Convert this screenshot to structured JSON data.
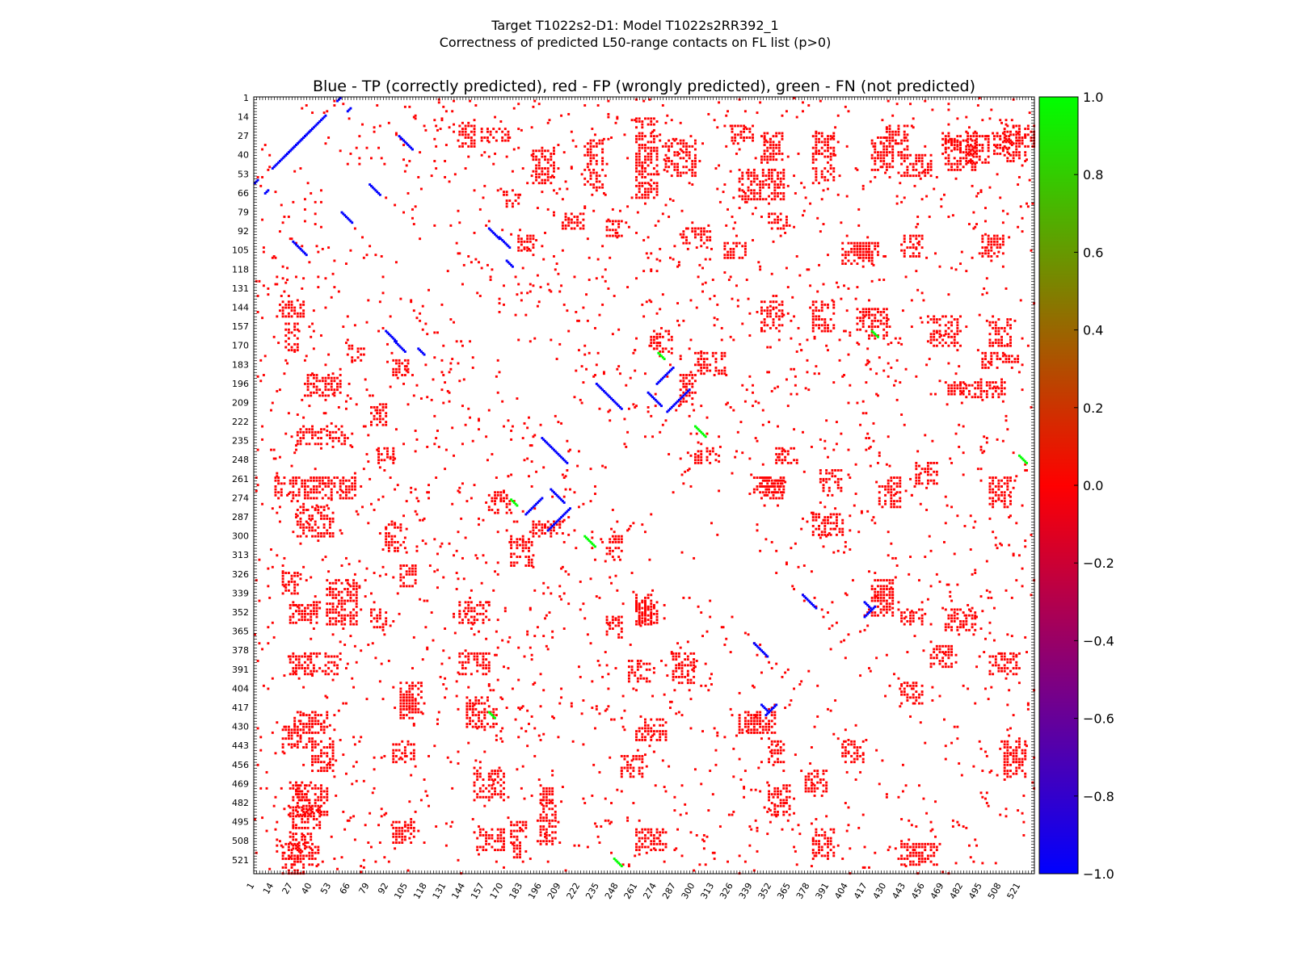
{
  "figure": {
    "title_line1": "Target T1022s2-D1: Model T1022s2RR392_1",
    "title_line2": "Correctness of predicted L50-range contacts on FL list (p>0)"
  },
  "chart_data": {
    "type": "heatmap",
    "title": "Blue - TP (correctly predicted), red - FP (wrongly predicted), green - FN (not predicted)",
    "xlabel": "",
    "ylabel": "",
    "axis_min": 1,
    "axis_max": 530,
    "y_inverted": true,
    "xticks": [
      1,
      14,
      27,
      40,
      53,
      66,
      79,
      92,
      105,
      118,
      131,
      144,
      157,
      170,
      183,
      196,
      209,
      222,
      235,
      248,
      261,
      274,
      287,
      300,
      313,
      326,
      339,
      352,
      365,
      378,
      391,
      404,
      417,
      430,
      443,
      456,
      469,
      482,
      495,
      508,
      521
    ],
    "yticks": [
      1,
      14,
      27,
      40,
      53,
      66,
      79,
      92,
      105,
      118,
      131,
      144,
      157,
      170,
      183,
      196,
      209,
      222,
      235,
      248,
      261,
      274,
      287,
      300,
      313,
      326,
      339,
      352,
      365,
      378,
      391,
      404,
      417,
      430,
      443,
      456,
      469,
      482,
      495,
      508,
      521
    ],
    "colorbar": {
      "min": -1.0,
      "max": 1.0,
      "ticks": [
        "1.0",
        "0.8",
        "0.6",
        "0.4",
        "0.2",
        "0.0",
        "−0.2",
        "−0.4",
        "−0.6",
        "−0.8",
        "−1.0"
      ],
      "colors": [
        "#0000ff",
        "#ff0000",
        "#00ff00"
      ]
    },
    "categories": {
      "TP": {
        "value": -1,
        "color": "#0000ff"
      },
      "FP": {
        "value": 0,
        "color": "#ff0000"
      },
      "FN": {
        "value": 1,
        "color": "#00ff00"
      }
    },
    "regions": {
      "comment": "approximate contact clusters in residue coordinates [i1, i2, j1, j2, value]; rendered mirrored about diagonal",
      "blocks": [
        [
          55,
          62,
          1,
          6,
          0
        ],
        [
          140,
          150,
          18,
          34,
          0
        ],
        [
          155,
          175,
          22,
          30,
          0
        ],
        [
          190,
          205,
          35,
          60,
          0
        ],
        [
          225,
          238,
          30,
          65,
          0
        ],
        [
          260,
          275,
          15,
          70,
          0
        ],
        [
          280,
          300,
          30,
          55,
          0
        ],
        [
          325,
          340,
          20,
          30,
          0
        ],
        [
          345,
          360,
          25,
          45,
          0
        ],
        [
          380,
          395,
          25,
          60,
          0
        ],
        [
          420,
          435,
          28,
          50,
          0
        ],
        [
          440,
          460,
          40,
          55,
          0
        ],
        [
          468,
          480,
          25,
          40,
          0
        ],
        [
          485,
          500,
          25,
          45,
          0
        ],
        [
          503,
          515,
          25,
          40,
          0
        ],
        [
          520,
          530,
          20,
          35,
          0
        ],
        [
          170,
          180,
          65,
          75,
          0
        ],
        [
          210,
          225,
          80,
          90,
          0
        ],
        [
          180,
          190,
          95,
          105,
          0
        ],
        [
          240,
          250,
          85,
          95,
          0
        ],
        [
          290,
          310,
          90,
          100,
          0
        ],
        [
          320,
          335,
          100,
          110,
          0
        ],
        [
          350,
          365,
          80,
          90,
          0
        ],
        [
          410,
          425,
          100,
          110,
          0
        ],
        [
          440,
          455,
          95,
          110,
          0
        ],
        [
          495,
          510,
          95,
          110,
          0
        ],
        [
          270,
          285,
          160,
          175,
          0
        ],
        [
          290,
          300,
          190,
          210,
          0
        ],
        [
          300,
          320,
          175,
          190,
          0
        ],
        [
          345,
          360,
          140,
          160,
          0
        ],
        [
          380,
          395,
          140,
          160,
          0
        ],
        [
          418,
          430,
          145,
          165,
          0
        ],
        [
          460,
          480,
          150,
          170,
          0
        ],
        [
          500,
          515,
          150,
          170,
          0
        ],
        [
          345,
          360,
          260,
          275,
          0
        ],
        [
          355,
          370,
          240,
          250,
          0
        ],
        [
          385,
          400,
          255,
          270,
          0
        ],
        [
          425,
          440,
          260,
          280,
          0
        ],
        [
          450,
          465,
          250,
          265,
          0
        ],
        [
          500,
          515,
          260,
          280,
          0
        ],
        [
          420,
          435,
          330,
          345,
          0
        ],
        [
          440,
          455,
          350,
          360,
          0
        ],
        [
          460,
          475,
          375,
          390,
          0
        ],
        [
          510,
          525,
          440,
          455,
          0
        ],
        [
          470,
          490,
          350,
          365,
          0
        ],
        [
          20,
          40,
          430,
          445,
          0
        ],
        [
          30,
          50,
          470,
          490,
          0
        ],
        [
          20,
          45,
          510,
          525,
          0
        ],
        [
          50,
          70,
          330,
          360,
          0
        ],
        [
          100,
          115,
          400,
          420,
          0
        ],
        [
          145,
          160,
          410,
          425,
          0
        ],
        [
          175,
          185,
          495,
          520,
          0
        ],
        [
          195,
          205,
          470,
          510,
          0
        ],
        [
          240,
          250,
          300,
          315,
          0
        ],
        [
          260,
          270,
          340,
          360,
          0
        ],
        [
          285,
          300,
          380,
          400,
          0
        ],
        [
          340,
          355,
          420,
          435,
          0
        ],
        [
          380,
          395,
          500,
          520,
          0
        ],
        [
          400,
          415,
          440,
          455,
          0
        ],
        [
          450,
          465,
          510,
          525,
          0
        ]
      ],
      "diagonals": [
        [
          57,
          3,
          62,
          -1,
          -1
        ],
        [
          22,
          40,
          28,
          -1,
          -1
        ],
        [
          8,
          66,
          3,
          -1,
          -1
        ],
        [
          27,
          99,
          10,
          1,
          -1
        ],
        [
          60,
          79,
          8,
          1,
          -1
        ],
        [
          90,
          160,
          8,
          1,
          -1
        ],
        [
          96,
          167,
          8,
          1,
          -1
        ],
        [
          112,
          172,
          5,
          1,
          -1
        ],
        [
          196,
          233,
          18,
          1,
          -1
        ],
        [
          202,
          268,
          10,
          1,
          -1
        ],
        [
          200,
          296,
          16,
          -1,
          -1
        ],
        [
          185,
          285,
          12,
          -1,
          -1
        ],
        [
          340,
          373,
          10,
          1,
          -1
        ],
        [
          345,
          415,
          6,
          1,
          -1
        ],
        [
          415,
          355,
          8,
          -1,
          -1
        ],
        [
          245,
          520,
          6,
          1,
          1
        ],
        [
          275,
          175,
          5,
          1,
          1
        ],
        [
          225,
          300,
          8,
          1,
          1
        ],
        [
          160,
          420,
          5,
          1,
          1
        ]
      ]
    }
  }
}
